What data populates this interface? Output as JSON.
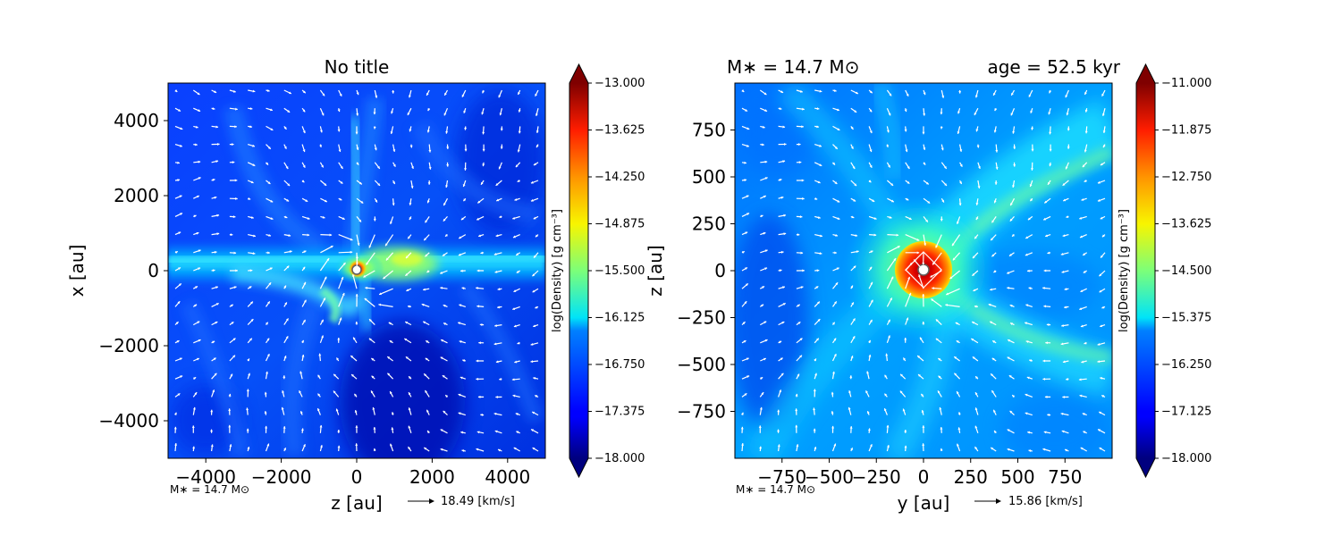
{
  "chart_data": [
    {
      "type": "heatmap",
      "title": "No title",
      "xlabel": "z [au]",
      "ylabel": "x [au]",
      "xlim": [
        -5000,
        5000
      ],
      "ylim": [
        -5000,
        5000
      ],
      "xticks": [
        -4000,
        -2000,
        0,
        2000,
        4000
      ],
      "yticks": [
        4000,
        2000,
        0,
        -2000,
        -4000
      ],
      "xtick_labels": [
        "−4000",
        "−2000",
        "0",
        "2000",
        "4000"
      ],
      "ytick_labels": [
        "4000",
        "2000",
        "0",
        "−2000",
        "−4000"
      ],
      "colorbar": {
        "label": "log(Density) [g cm⁻³]",
        "min": -18.0,
        "max": -13.0,
        "ticks": [
          -13.0,
          -13.625,
          -14.25,
          -14.875,
          -15.5,
          -16.125,
          -16.75,
          -17.375,
          -18.0
        ],
        "tick_labels": [
          "−13.000",
          "−13.625",
          "−14.250",
          "−14.875",
          "−15.500",
          "−16.125",
          "−16.750",
          "−17.375",
          "−18.000"
        ],
        "colormap": "jet"
      },
      "mass_label": "M∗ = 14.7 M⊙",
      "velocity_key": "18.49 [km/s]",
      "features": "horizontal dense filament along x ≈ 0 with star at origin"
    },
    {
      "type": "heatmap",
      "title": "",
      "title_left": "M∗ = 14.7 M⊙",
      "title_right": "age = 52.5 kyr",
      "xlabel": "y [au]",
      "ylabel": "z [au]",
      "xlim": [
        -1000,
        1000
      ],
      "ylim": [
        -1000,
        1000
      ],
      "xticks": [
        -750,
        -500,
        -250,
        0,
        250,
        500,
        750
      ],
      "yticks": [
        750,
        500,
        250,
        0,
        -250,
        -500,
        -750
      ],
      "xtick_labels": [
        "−750",
        "−500",
        "−250",
        "0",
        "250",
        "500",
        "750"
      ],
      "ytick_labels": [
        "750",
        "500",
        "250",
        "0",
        "−250",
        "−500",
        "−750"
      ],
      "colorbar": {
        "label": "log(Density) [g cm⁻³]",
        "min": -18.0,
        "max": -11.0,
        "ticks": [
          -11.0,
          -11.875,
          -12.75,
          -13.625,
          -14.5,
          -15.375,
          -16.25,
          -17.125,
          -18.0
        ],
        "tick_labels": [
          "−11.000",
          "−11.875",
          "−12.750",
          "−13.625",
          "−14.500",
          "−15.375",
          "−16.250",
          "−17.125",
          "−18.000"
        ],
        "colormap": "jet"
      },
      "mass_label": "M∗ = 14.7 M⊙",
      "velocity_key": "15.86 [km/s]",
      "features": "dense central clump with spiral-like streamers"
    }
  ],
  "colors": {
    "jet_low": "#00007f",
    "jet_mid": "#7fff7f",
    "jet_high": "#7f0000",
    "arrows": "#ffffff"
  }
}
